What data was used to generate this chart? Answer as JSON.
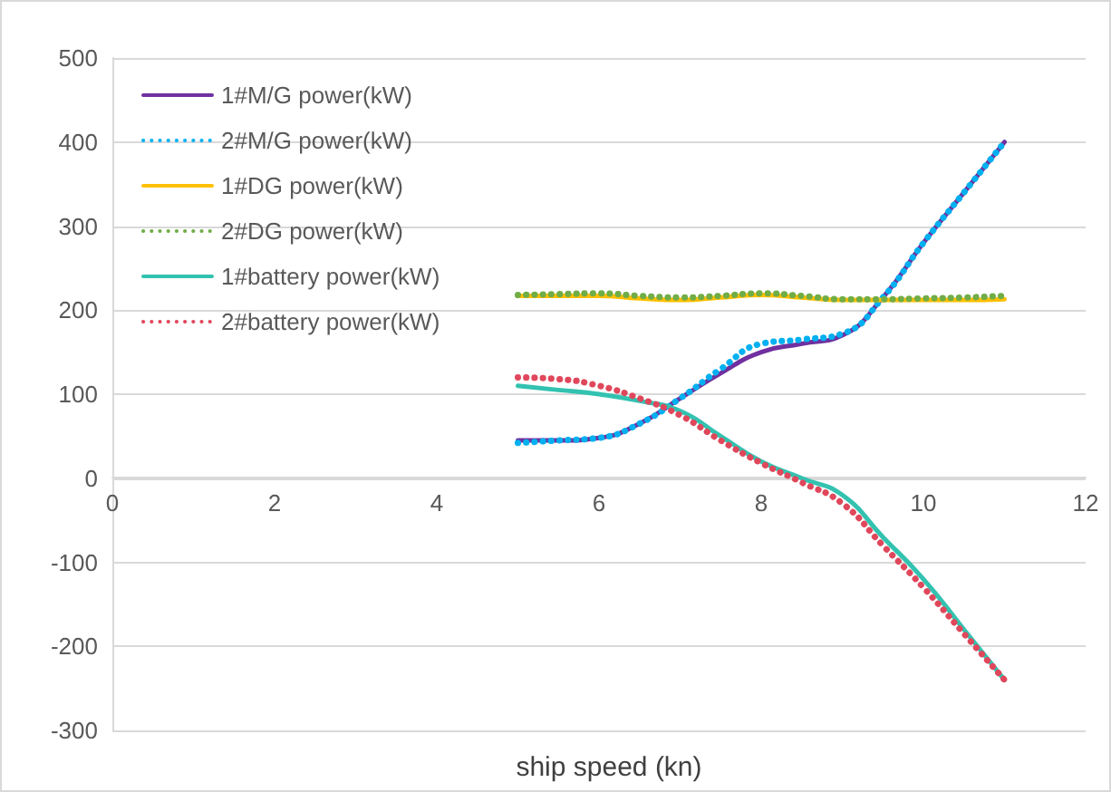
{
  "chart_data": {
    "type": "line",
    "xlabel": "ship speed (kn)",
    "x": [
      5,
      5.5,
      6,
      6.5,
      7,
      7.5,
      8,
      8.5,
      9,
      9.5,
      10,
      10.5,
      11
    ],
    "xlim": [
      0,
      12
    ],
    "xticks": [
      0,
      2,
      4,
      6,
      8,
      10,
      12
    ],
    "ylim": [
      -300,
      500
    ],
    "yticks": [
      -300,
      -200,
      -100,
      0,
      100,
      200,
      300,
      400,
      500
    ],
    "grid": "y",
    "legend": "top left",
    "marker": "none",
    "series": [
      {
        "name": "1#M/G power(kW)",
        "color": "#7030a0",
        "line_style": "solid",
        "values": [
          45,
          45,
          48,
          65,
          95,
          125,
          150,
          160,
          170,
          215,
          280,
          340,
          400
        ]
      },
      {
        "name": "2#M/G power(kW)",
        "color": "#00b0f0",
        "line_style": "dotted",
        "values": [
          42,
          45,
          48,
          65,
          95,
          130,
          160,
          165,
          172,
          215,
          280,
          340,
          400
        ]
      },
      {
        "name": "1#DG power(kW)",
        "color": "#ffc000",
        "line_style": "solid",
        "values": [
          217,
          217,
          217,
          214,
          212,
          215,
          218,
          215,
          212,
          212,
          212,
          212,
          213
        ]
      },
      {
        "name": "2#DG power(kW)",
        "color": "#70ad47",
        "line_style": "dotted",
        "values": [
          218,
          219,
          220,
          217,
          215,
          217,
          220,
          217,
          213,
          213,
          214,
          215,
          217
        ]
      },
      {
        "name": "1#battery power(kW)",
        "color": "#33c2b0",
        "line_style": "solid",
        "values": [
          110,
          105,
          100,
          92,
          80,
          50,
          20,
          0,
          -20,
          -70,
          -120,
          -180,
          -240
        ]
      },
      {
        "name": "2#battery power(kW)",
        "color": "#e0475b",
        "line_style": "dotted",
        "values": [
          120,
          118,
          110,
          95,
          75,
          45,
          18,
          -5,
          -30,
          -80,
          -130,
          -185,
          -240
        ]
      }
    ]
  }
}
